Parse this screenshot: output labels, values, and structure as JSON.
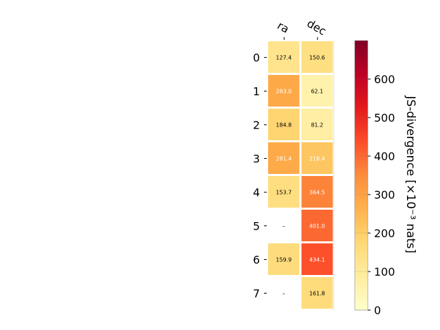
{
  "chart_data": {
    "type": "heatmap",
    "columns": [
      "ra",
      "dec"
    ],
    "rows": [
      "0",
      "1",
      "2",
      "3",
      "4",
      "5",
      "6",
      "7"
    ],
    "values": [
      [
        127.4,
        150.6
      ],
      [
        283.0,
        62.1
      ],
      [
        184.8,
        81.2
      ],
      [
        281.4,
        218.4
      ],
      [
        153.7,
        364.5
      ],
      [
        null,
        401.0
      ],
      [
        159.9,
        434.1
      ],
      [
        null,
        161.8
      ]
    ],
    "cell_labels": [
      [
        "127.4",
        "150.6"
      ],
      [
        "283.0",
        "62.1"
      ],
      [
        "184.8",
        "81.2"
      ],
      [
        "281.4",
        "218.4"
      ],
      [
        "153.7",
        "364.5"
      ],
      [
        "–",
        "401.0"
      ],
      [
        "159.9",
        "434.1"
      ],
      [
        "–",
        "161.8"
      ]
    ],
    "colorbar": {
      "label": "JS-divergence [×10⁻³ nats]",
      "range": [
        0,
        700
      ],
      "ticks": [
        0,
        100,
        200,
        300,
        400,
        500,
        600
      ],
      "tick_labels": [
        "0",
        "100",
        "200",
        "300",
        "400",
        "500",
        "600"
      ],
      "colormap": "YlOrRd"
    }
  }
}
